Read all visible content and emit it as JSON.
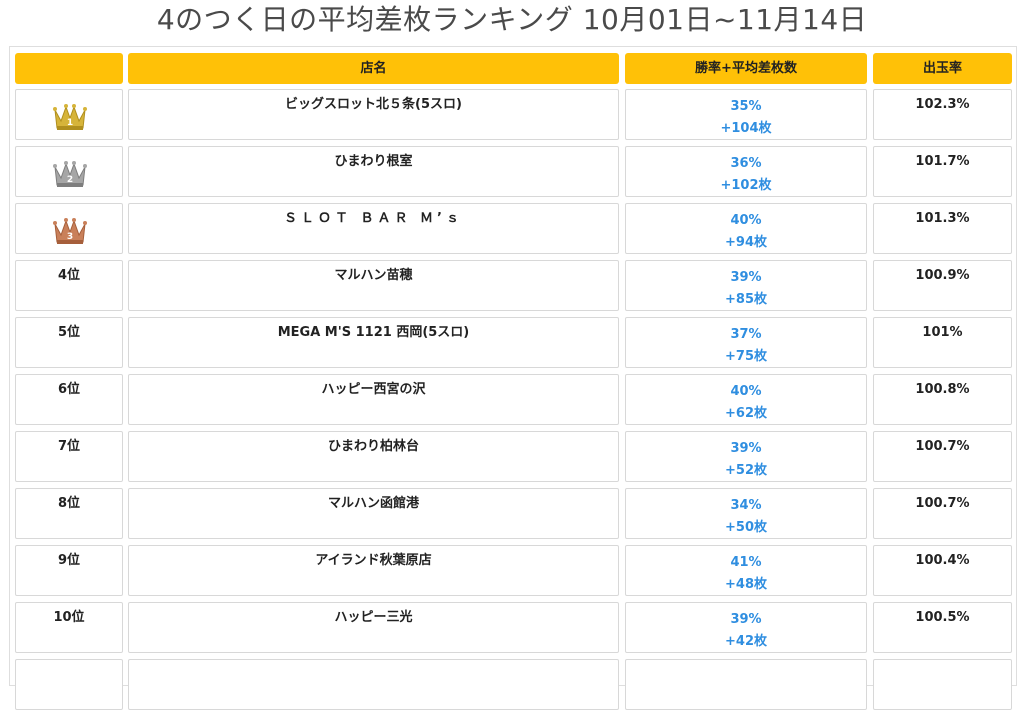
{
  "title": "4のつく日の平均差枚ランキング 10月01日~11月14日",
  "headers": {
    "rank": "",
    "shop": "店名",
    "rate": "勝率+平均差枚数",
    "payout": "出玉率"
  },
  "colors": {
    "header": "#ffc107",
    "accent": "#2f8ee0",
    "gold": "#d6b43a",
    "silver": "#a6a6a6",
    "bronze": "#c9805a"
  },
  "rows": [
    {
      "rank": "1",
      "crown": "gold-crown-icon",
      "shop": "ビッグスロット北５条(5スロ)",
      "win_rate": "35%",
      "avg_diff": "+104枚",
      "payout": "102.3%"
    },
    {
      "rank": "2",
      "crown": "silver-crown-icon",
      "shop": "ひまわり根室",
      "win_rate": "36%",
      "avg_diff": "+102枚",
      "payout": "101.7%"
    },
    {
      "rank": "3",
      "crown": "bronze-crown-icon",
      "shop": "ＳＬＯＴ ＢＡＲ Ｍ’ｓ",
      "win_rate": "40%",
      "avg_diff": "+94枚",
      "payout": "101.3%"
    },
    {
      "rank": "4位",
      "shop": "マルハン苗穂",
      "win_rate": "39%",
      "avg_diff": "+85枚",
      "payout": "100.9%"
    },
    {
      "rank": "5位",
      "shop": "MEGA M'S 1121 西岡(5スロ)",
      "win_rate": "37%",
      "avg_diff": "+75枚",
      "payout": "101%"
    },
    {
      "rank": "6位",
      "shop": "ハッピー西宮の沢",
      "win_rate": "40%",
      "avg_diff": "+62枚",
      "payout": "100.8%"
    },
    {
      "rank": "7位",
      "shop": "ひまわり柏林台",
      "win_rate": "39%",
      "avg_diff": "+52枚",
      "payout": "100.7%"
    },
    {
      "rank": "8位",
      "shop": "マルハン函館港",
      "win_rate": "34%",
      "avg_diff": "+50枚",
      "payout": "100.7%"
    },
    {
      "rank": "9位",
      "shop": "アイランド秋葉原店",
      "win_rate": "41%",
      "avg_diff": "+48枚",
      "payout": "100.4%"
    },
    {
      "rank": "10位",
      "shop": "ハッピー三光",
      "win_rate": "39%",
      "avg_diff": "+42枚",
      "payout": "100.5%"
    }
  ]
}
